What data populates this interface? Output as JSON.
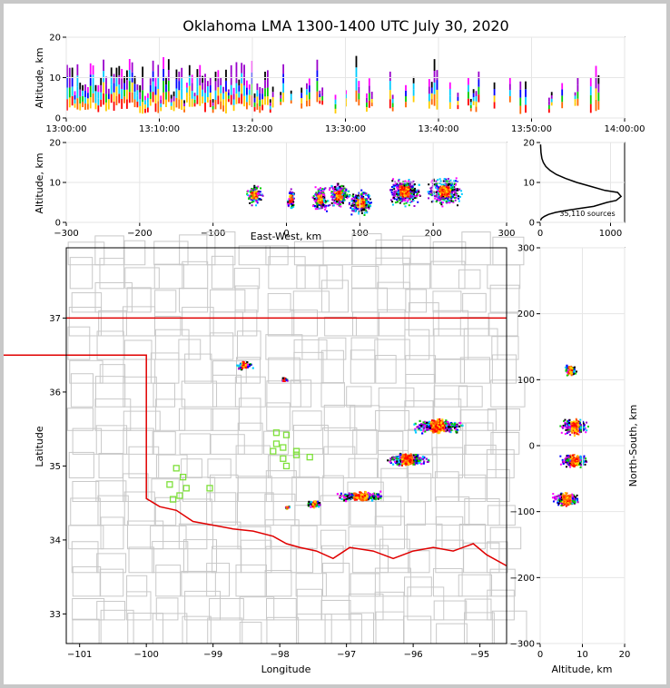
{
  "title": "Oklahoma LMA 1300-1400 UTC July 30, 2020",
  "source_count_label": "35,110 sources",
  "colors": {
    "boundary": "#e00000",
    "county": "#c8c8c8",
    "station": "#7ee03a",
    "axis": "#000000"
  },
  "chart_data": [
    {
      "id": "time-altitude",
      "type": "scatter",
      "xlabel": "",
      "ylabel": "Altitude, km",
      "xticks": [
        "13:00:00",
        "13:10:00",
        "13:20:00",
        "13:30:00",
        "13:40:00",
        "13:50:00",
        "14:00:00"
      ],
      "yticks": [
        "0",
        "10",
        "20"
      ],
      "xlim_minutes": [
        0,
        60
      ],
      "ylim": [
        0,
        20
      ],
      "grid": true
    },
    {
      "id": "eastwest-altitude",
      "type": "scatter",
      "xlabel": "East-West, km",
      "ylabel": "Altitude, km",
      "xticks": [
        "−300",
        "−200",
        "−100",
        "0",
        "100",
        "200",
        "300"
      ],
      "yticks": [
        "0",
        "10",
        "20"
      ],
      "xlim": [
        -300,
        300
      ],
      "ylim": [
        0,
        20
      ],
      "grid": true
    },
    {
      "id": "altitude-histogram",
      "type": "line",
      "xticks": [
        "0",
        "1000"
      ],
      "yticks": [
        "0",
        "10",
        "20"
      ],
      "xlim": [
        0,
        1200
      ],
      "ylim": [
        0,
        20
      ],
      "grid": true,
      "series": [
        {
          "x": [
            5,
            20,
            60,
            120,
            220,
            380,
            560,
            760,
            950,
            1080,
            1150,
            1100,
            920,
            720,
            520,
            360,
            230,
            140,
            80,
            45,
            25,
            12,
            5
          ],
          "y": [
            0.5,
            1,
            1.5,
            2,
            2.5,
            3,
            3.5,
            4,
            5,
            5.5,
            6.5,
            7.5,
            8,
            9,
            10,
            11,
            12,
            13,
            14,
            15,
            16,
            17.5,
            19.5
          ]
        }
      ]
    },
    {
      "id": "plan-view-map",
      "type": "scatter",
      "xlabel": "Longitude",
      "ylabel": "Latitude",
      "xticks": [
        "−101",
        "−100",
        "−99",
        "−98",
        "−97",
        "−96",
        "−95"
      ],
      "yticks": [
        "33",
        "34",
        "35",
        "36",
        "37"
      ],
      "xlim": [
        -101.2,
        -94.6
      ],
      "ylim": [
        32.6,
        37.95
      ],
      "grid": false,
      "stations": [
        [
          -99.55,
          34.97
        ],
        [
          -99.45,
          34.85
        ],
        [
          -99.65,
          34.75
        ],
        [
          -99.4,
          34.7
        ],
        [
          -99.5,
          34.6
        ],
        [
          -99.6,
          34.55
        ],
        [
          -98.05,
          35.45
        ],
        [
          -97.9,
          35.42
        ],
        [
          -98.05,
          35.3
        ],
        [
          -97.95,
          35.25
        ],
        [
          -98.1,
          35.2
        ],
        [
          -97.75,
          35.2
        ],
        [
          -97.95,
          35.1
        ],
        [
          -97.75,
          35.15
        ],
        [
          -97.55,
          35.12
        ],
        [
          -97.9,
          35.0
        ],
        [
          -99.05,
          34.7
        ]
      ]
    },
    {
      "id": "altitude-northsouth",
      "type": "scatter",
      "xlabel": "Altitude, km",
      "ylabel": "North-South, km",
      "xticks": [
        "0",
        "10",
        "20"
      ],
      "yticks": [
        "300",
        "200",
        "100",
        "0",
        "−100",
        "−200",
        "−300"
      ],
      "xlim": [
        0,
        20
      ],
      "ylim": [
        -300,
        300
      ],
      "grid": true
    }
  ]
}
